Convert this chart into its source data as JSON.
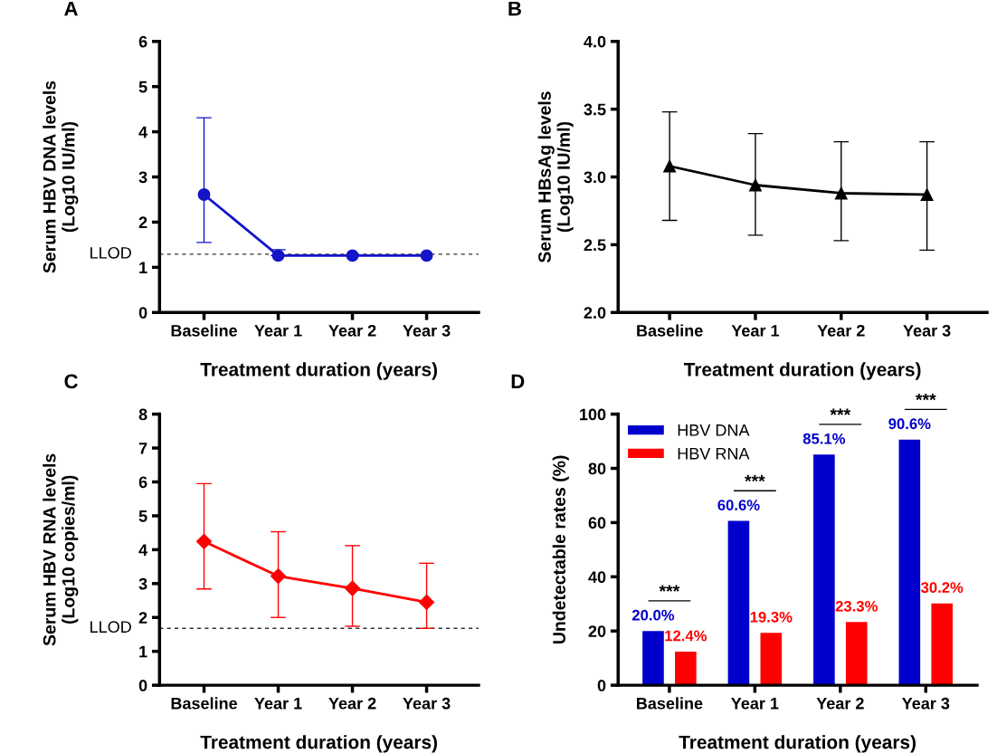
{
  "chart_data": [
    {
      "type": "line",
      "title": "A",
      "xlabel": "Treatment duration (years)",
      "ylabel": "Serum HBV DNA levels\n(Log10 IU/ml)",
      "categories": [
        "Baseline",
        "Year 1",
        "Year 2",
        "Year 3"
      ],
      "marker": "circle",
      "ylim": [
        0,
        6
      ],
      "yticks": [
        0,
        1,
        2,
        3,
        4,
        5,
        6
      ],
      "series": [
        {
          "color": "#1414c8",
          "values": [
            2.61,
            1.26,
            1.26,
            1.26
          ],
          "errors": [
            [
              1.55,
              4.31
            ],
            [
              1.26,
              1.39
            ],
            null,
            null
          ]
        }
      ],
      "ref_lines": [
        {
          "axis": "y",
          "value": 1.29,
          "label": "LLOD",
          "line_style": "dashed",
          "color": "#333333"
        }
      ]
    },
    {
      "type": "line",
      "title": "B",
      "xlabel": "Treatment duration (years)",
      "ylabel": "Serum HBsAg levels\n(Log10 IU/ml)",
      "categories": [
        "Baseline",
        "Year 1",
        "Year 2",
        "Year 3"
      ],
      "marker": "triangle",
      "ylim": [
        2.0,
        4.0
      ],
      "yticks": [
        {
          "value": 2,
          "label": "2.0"
        },
        {
          "value": 2.5,
          "label": "2.5"
        },
        {
          "value": 3,
          "label": "3.0"
        },
        {
          "value": 3.5,
          "label": "3.5"
        },
        {
          "value": 4,
          "label": "4.0"
        }
      ],
      "series": [
        {
          "color": "#000000",
          "values": [
            3.08,
            2.94,
            2.88,
            2.87
          ],
          "errors": [
            [
              2.68,
              3.48
            ],
            [
              2.57,
              3.32
            ],
            [
              2.53,
              3.26
            ],
            [
              2.46,
              3.26
            ]
          ]
        }
      ]
    },
    {
      "type": "line",
      "title": "C",
      "xlabel": "Treatment duration (years)",
      "ylabel": "Serum HBV RNA levels\n(Log10 copies/ml)",
      "categories": [
        "Baseline",
        "Year 1",
        "Year 2",
        "Year 3"
      ],
      "marker": "diamond",
      "ylim": [
        0,
        8
      ],
      "yticks": [
        0,
        1,
        2,
        3,
        4,
        5,
        6,
        7,
        8
      ],
      "series": [
        {
          "color": "#ff0000",
          "values": [
            4.24,
            3.22,
            2.86,
            2.45
          ],
          "errors": [
            [
              2.84,
              5.95
            ],
            [
              2.0,
              4.53
            ],
            [
              1.74,
              4.12
            ],
            [
              1.68,
              3.6
            ]
          ]
        }
      ],
      "ref_lines": [
        {
          "axis": "y",
          "value": 1.68,
          "label": "LLOD",
          "line_style": "dashed",
          "color": "#333333"
        }
      ]
    },
    {
      "type": "bar",
      "title": "D",
      "xlabel": "Treatment duration (years)",
      "ylabel": "Undetectable rates (%)",
      "categories": [
        "Baseline",
        "Year 1",
        "Year 2",
        "Year 3"
      ],
      "ylim": [
        0,
        100
      ],
      "yticks": [
        0,
        20,
        40,
        60,
        80,
        100
      ],
      "legend": "top left",
      "series": [
        {
          "name": "HBV DNA",
          "color": "#0000cc",
          "values": [
            20.0,
            60.6,
            85.1,
            90.6
          ],
          "value_labels": [
            "20.0%",
            "60.6%",
            "85.1%",
            "90.6%"
          ]
        },
        {
          "name": "HBV RNA",
          "color": "#ff0000",
          "values": [
            12.4,
            19.3,
            23.3,
            30.2
          ],
          "value_labels": [
            "12.4%",
            "19.3%",
            "23.3%",
            "30.2%"
          ]
        }
      ],
      "annotations": [
        "***",
        "***",
        "***",
        "***"
      ]
    }
  ]
}
